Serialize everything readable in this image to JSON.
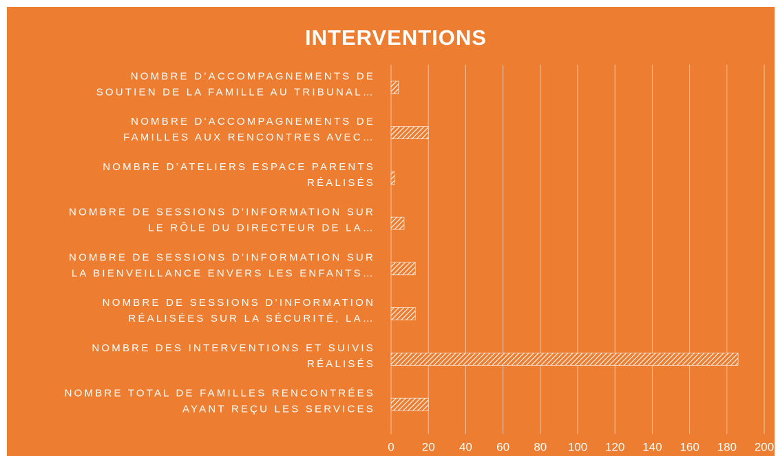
{
  "chart_data": {
    "type": "barh",
    "title": "INTERVENTIONS",
    "categories": [
      "NOMBRE D’ACCOMPAGNEMENTS DE\nSOUTIEN DE LA FAMILLE AU TRIBUNAL…",
      "NOMBRE D'ACCOMPAGNEMENTS DE\nFAMILLES AUX RENCONTRES AVEC…",
      "NOMBRE D’ATELIERS ESPACE PARENTS\nRÉALISÉS",
      "NOMBRE DE SESSIONS D’INFORMATION SUR\nLE RÔLE DU DIRECTEUR DE LA…",
      "NOMBRE DE SESSIONS D’INFORMATION SUR\nLA BIENVEILLANCE ENVERS LES ENFANTS…",
      "NOMBRE DE SESSIONS D’INFORMATION\nRÉALISÉES SUR LA SÉCURITÉ, LA…",
      "NOMBRE DES INTERVENTIONS ET SUIVIS\nRÉALISÉS",
      "NOMBRE TOTAL DE FAMILLES RENCONTRÉES\nAYANT REÇU LES SERVICES"
    ],
    "values": [
      4,
      20,
      2,
      7,
      13,
      13,
      186,
      20
    ],
    "color": "#ffffff",
    "background": "#ed7d31",
    "xlim": [
      0,
      200
    ],
    "xticks": [
      0,
      20,
      40,
      60,
      80,
      100,
      120,
      140,
      160,
      180,
      200
    ],
    "grid": true
  }
}
